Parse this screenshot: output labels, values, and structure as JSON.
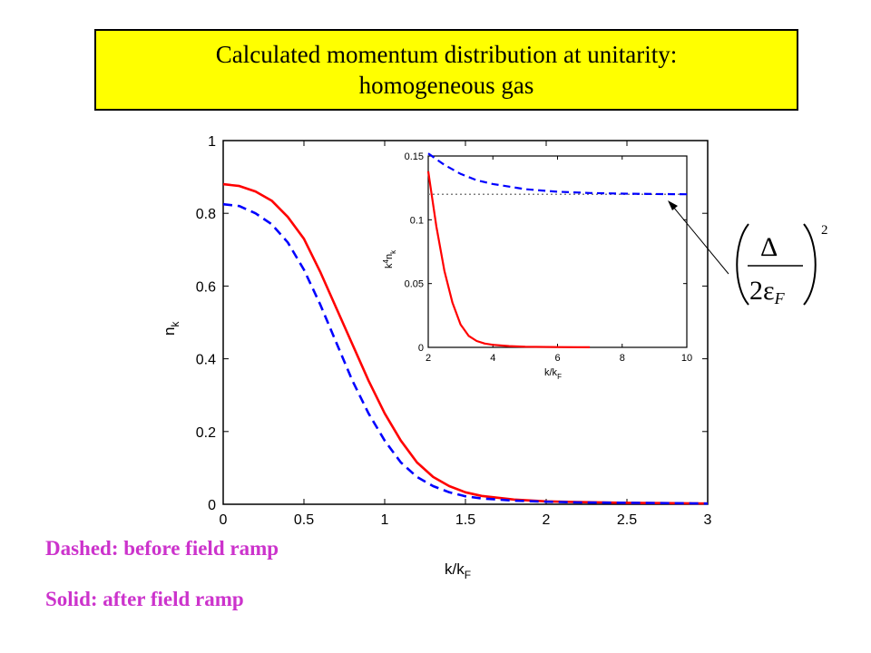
{
  "title": {
    "line1": "Calculated momentum distribution at unitarity:",
    "line2": "homogeneous  gas"
  },
  "legend": {
    "dashed": "Dashed: before field ramp",
    "solid": "Solid: after field ramp"
  },
  "colors": {
    "title_bg": "#ffff00",
    "legend_text": "#cc33cc",
    "solid_series": "#ff0000",
    "dashed_series": "#0000ff",
    "asymptote": "#808080"
  },
  "chart_data": [
    {
      "type": "line",
      "panel": "main",
      "xlabel": "k/k",
      "xlabel_sub": "F",
      "ylabel": "n",
      "ylabel_sub": "k",
      "xlim": [
        0,
        3
      ],
      "ylim": [
        0,
        1
      ],
      "xticks": [
        "0",
        "0.5",
        "1",
        "1.5",
        "2",
        "2.5",
        "3"
      ],
      "yticks": [
        "0",
        "0.2",
        "0.4",
        "0.6",
        "0.8",
        "1"
      ],
      "grid": false,
      "series": [
        {
          "style": "solid",
          "color": "#ff0000",
          "x": [
            0,
            0.1,
            0.2,
            0.3,
            0.4,
            0.5,
            0.6,
            0.7,
            0.8,
            0.9,
            1.0,
            1.1,
            1.2,
            1.3,
            1.4,
            1.5,
            1.6,
            1.8,
            2.0,
            2.2,
            2.5,
            2.8,
            3.0
          ],
          "y": [
            0.88,
            0.875,
            0.86,
            0.835,
            0.79,
            0.73,
            0.64,
            0.54,
            0.44,
            0.34,
            0.25,
            0.175,
            0.115,
            0.075,
            0.05,
            0.033,
            0.023,
            0.013,
            0.008,
            0.006,
            0.004,
            0.003,
            0.002
          ]
        },
        {
          "style": "dashed",
          "color": "#0000ff",
          "x": [
            0,
            0.1,
            0.2,
            0.3,
            0.4,
            0.5,
            0.6,
            0.7,
            0.8,
            0.9,
            1.0,
            1.1,
            1.2,
            1.3,
            1.4,
            1.5,
            1.6,
            1.8,
            2.0,
            2.2,
            2.5,
            2.8,
            3.0
          ],
          "y": [
            0.825,
            0.82,
            0.8,
            0.77,
            0.72,
            0.645,
            0.55,
            0.445,
            0.34,
            0.25,
            0.175,
            0.115,
            0.075,
            0.05,
            0.033,
            0.022,
            0.016,
            0.01,
            0.007,
            0.005,
            0.004,
            0.003,
            0.002
          ]
        }
      ]
    },
    {
      "type": "line",
      "panel": "inset",
      "xlabel": "k/k",
      "xlabel_sub": "F",
      "ylabel": "k",
      "ylabel_sup": "4",
      "ylabel_mid": "n",
      "ylabel_sub": "k",
      "xlim": [
        2,
        10
      ],
      "ylim": [
        0,
        0.15
      ],
      "xticks": [
        "2",
        "4",
        "6",
        "8",
        "10"
      ],
      "yticks": [
        "0",
        "0.05",
        "0.1",
        "0.15"
      ],
      "grid": false,
      "asymptote": 0.12,
      "series": [
        {
          "style": "solid",
          "color": "#ff0000",
          "x": [
            2.0,
            2.25,
            2.5,
            2.75,
            3.0,
            3.25,
            3.5,
            3.75,
            4.0,
            4.5,
            5.0,
            6.0,
            7.0
          ],
          "y": [
            0.138,
            0.095,
            0.06,
            0.035,
            0.018,
            0.009,
            0.005,
            0.003,
            0.002,
            0.001,
            0.0005,
            0.0002,
            0.0001
          ]
        },
        {
          "style": "dashed",
          "color": "#0000ff",
          "x": [
            2.0,
            2.5,
            3.0,
            3.5,
            4.0,
            5.0,
            6.0,
            7.0,
            8.0,
            9.0,
            10.0
          ],
          "y": [
            0.152,
            0.143,
            0.136,
            0.131,
            0.128,
            0.124,
            0.122,
            0.121,
            0.1205,
            0.1202,
            0.12
          ]
        }
      ]
    }
  ],
  "formula": {
    "numerator": "Δ",
    "denominator": "2ε",
    "denominator_sub": "F",
    "exponent": "2"
  }
}
